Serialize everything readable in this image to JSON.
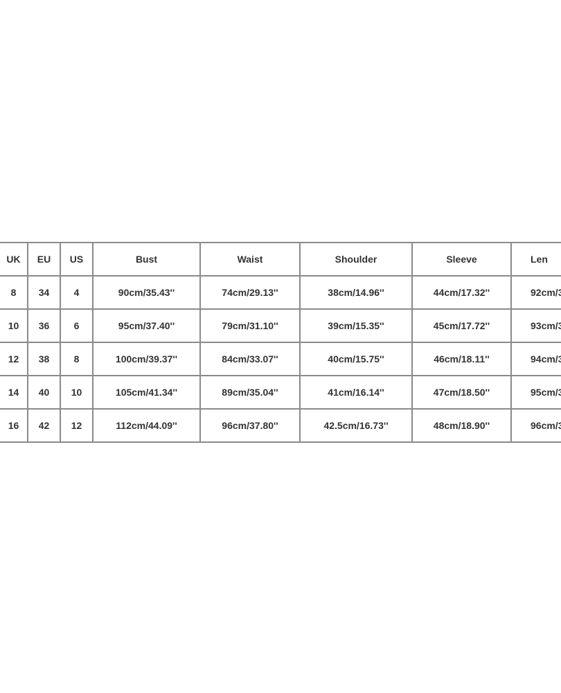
{
  "table": {
    "headers": [
      "UK",
      "EU",
      "US",
      "Bust",
      "Waist",
      "Shoulder",
      "Sleeve",
      "Len"
    ],
    "rows": [
      [
        "8",
        "34",
        "4",
        "90cm/35.43''",
        "74cm/29.13''",
        "38cm/14.96''",
        "44cm/17.32''",
        "92cm/3"
      ],
      [
        "10",
        "36",
        "6",
        "95cm/37.40''",
        "79cm/31.10''",
        "39cm/15.35''",
        "45cm/17.72''",
        "93cm/3"
      ],
      [
        "12",
        "38",
        "8",
        "100cm/39.37''",
        "84cm/33.07''",
        "40cm/15.75''",
        "46cm/18.11''",
        "94cm/3"
      ],
      [
        "14",
        "40",
        "10",
        "105cm/41.34''",
        "89cm/35.04''",
        "41cm/16.14''",
        "47cm/18.50''",
        "95cm/3"
      ],
      [
        "16",
        "42",
        "12",
        "112cm/44.09''",
        "96cm/37.80''",
        "42.5cm/16.73''",
        "48cm/18.90''",
        "96cm/3"
      ]
    ]
  }
}
